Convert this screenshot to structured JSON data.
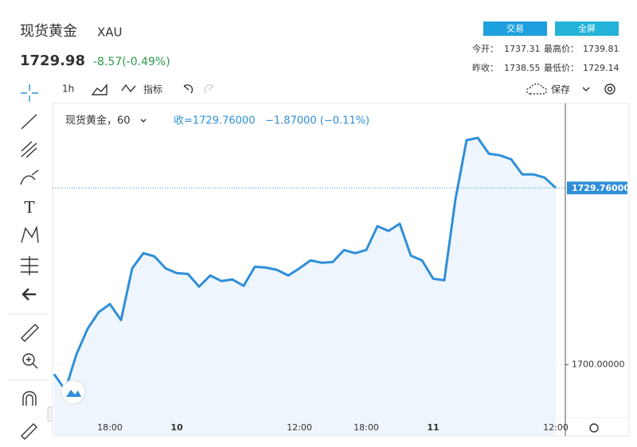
{
  "header": {
    "title": "现货黄金",
    "symbol": "XAU",
    "price": "1729.98",
    "change": "-8.57(-0.49%)",
    "buttons": [
      "交易",
      "全屏"
    ],
    "stats": [
      {
        "label": "今开：",
        "value": "1737.31"
      },
      {
        "label": "最高价：",
        "value": "1739.81"
      },
      {
        "label": "昨收：",
        "value": "1738.55"
      },
      {
        "label": "最低价：",
        "value": "1729.14"
      }
    ]
  },
  "toolbar": {
    "interval": "1h",
    "indicators": "指标",
    "save": "保存"
  },
  "legend": {
    "name": "现货黄金，60",
    "close": "收=1729.76000",
    "change": "−1.87000 (−0.11%)"
  },
  "chart_data": {
    "type": "line",
    "categories": [
      null,
      null,
      null,
      null,
      null,
      "18:00",
      null,
      null,
      null,
      null,
      null,
      "10",
      null,
      null,
      null,
      null,
      null,
      null,
      null,
      null,
      null,
      null,
      "12:00",
      null,
      null,
      null,
      null,
      null,
      "18:00",
      null,
      null,
      null,
      null,
      null,
      "11",
      null,
      null,
      null,
      null,
      null,
      null,
      null,
      null,
      null,
      null,
      "12:00"
    ],
    "values": [
      1698.39,
      1695.71,
      1701.74,
      1706.03,
      1708.85,
      1710.19,
      1707.51,
      1716.22,
      1718.77,
      1718.23,
      1716.22,
      1715.42,
      1715.28,
      1713.14,
      1715.01,
      1714.08,
      1714.34,
      1713.27,
      1716.49,
      1716.35,
      1715.95,
      1715.01,
      1716.22,
      1717.56,
      1717.16,
      1717.29,
      1719.3,
      1718.77,
      1719.3,
      1723.32,
      1722.52,
      1723.73,
      1718.36,
      1717.56,
      1714.48,
      1714.21,
      1727.88,
      1737.8,
      1738.2,
      1735.52,
      1735.25,
      1734.58,
      1732.04,
      1732.04,
      1731.5,
      1729.76
    ],
    "color": "#2f8fd8",
    "ylim": [
      1688,
      1744
    ],
    "yticks": [
      {
        "value": 1700,
        "label": "1700.00000"
      }
    ],
    "grid": true,
    "price_line": {
      "value": 1729.76,
      "label": "1729.76000"
    }
  }
}
